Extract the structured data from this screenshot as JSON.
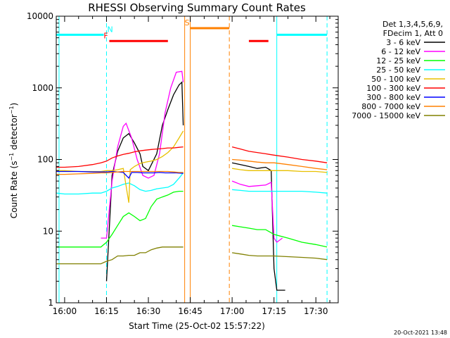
{
  "chart_data": {
    "type": "line",
    "title": "RHESSI Observing Summary Count Rates",
    "xlabel": "Start Time (25-Oct-02 15:57:22)",
    "ylabel": "Count Rate (s⁻¹ detector⁻¹)",
    "ylabel_main": "Count Rate (s",
    "ylabel_sup1": "−1",
    "ylabel_mid": " detector",
    "ylabel_sup2": "−1",
    "ylabel_end": ")",
    "yscale": "log",
    "ylim": [
      1,
      10000
    ],
    "xlim_minutes": [
      -3,
      98
    ],
    "x_ticks": [
      {
        "min": 0,
        "label": "16:00"
      },
      {
        "min": 15,
        "label": "16:15"
      },
      {
        "min": 30,
        "label": "16:30"
      },
      {
        "min": 45,
        "label": "16:45"
      },
      {
        "min": 60,
        "label": "17:00"
      },
      {
        "min": 75,
        "label": "17:15"
      },
      {
        "min": 90,
        "label": "17:30"
      }
    ],
    "y_ticks": [
      {
        "v": 1,
        "label": "1"
      },
      {
        "v": 10,
        "label": "10"
      },
      {
        "v": 100,
        "label": "100"
      },
      {
        "v": 1000,
        "label": "1000"
      },
      {
        "v": 10000,
        "label": "10000"
      }
    ],
    "legend_header": [
      "Det 1,3,4,5,6,9,",
      "FDecim 1, Att 0"
    ],
    "legend_position": "right",
    "footer_timestamp": "20-Oct-2021 13:48",
    "series": [
      {
        "name": "3 - 6 keV",
        "color": "#000000",
        "points": [
          [
            15,
            2
          ],
          [
            17,
            60
          ],
          [
            19,
            130
          ],
          [
            21,
            200
          ],
          [
            23,
            230
          ],
          [
            25,
            170
          ],
          [
            27,
            120
          ],
          [
            28,
            80
          ],
          [
            30,
            70
          ],
          [
            33,
            120
          ],
          [
            35,
            300
          ],
          [
            37,
            500
          ],
          [
            39,
            800
          ],
          [
            41,
            1100
          ],
          [
            42,
            1200
          ],
          [
            42.5,
            300
          ],
          [
            58,
            null
          ],
          [
            60,
            90
          ],
          [
            63,
            85
          ],
          [
            66,
            80
          ],
          [
            69,
            75
          ],
          [
            72,
            78
          ],
          [
            74,
            70
          ],
          [
            75,
            3
          ],
          [
            76,
            1.5
          ],
          [
            78,
            1.5
          ],
          [
            79,
            1.5
          ]
        ]
      },
      {
        "name": "6 - 12 keV",
        "color": "#ff00ff",
        "points": [
          [
            13,
            8
          ],
          [
            15,
            8
          ],
          [
            17,
            50
          ],
          [
            19,
            150
          ],
          [
            21,
            290
          ],
          [
            22,
            320
          ],
          [
            24,
            200
          ],
          [
            26,
            100
          ],
          [
            28,
            60
          ],
          [
            30,
            55
          ],
          [
            32,
            60
          ],
          [
            34,
            120
          ],
          [
            36,
            450
          ],
          [
            38,
            1000
          ],
          [
            40,
            1650
          ],
          [
            42,
            1700
          ],
          [
            42.5,
            1200
          ],
          [
            58,
            null
          ],
          [
            60,
            50
          ],
          [
            63,
            45
          ],
          [
            66,
            42
          ],
          [
            69,
            43
          ],
          [
            72,
            44
          ],
          [
            74,
            48
          ],
          [
            75,
            8
          ],
          [
            76,
            7
          ],
          [
            78,
            8
          ]
        ]
      },
      {
        "name": "12 - 25 keV",
        "color": "#00ff00",
        "points": [
          [
            -3,
            6
          ],
          [
            0,
            6
          ],
          [
            5,
            6
          ],
          [
            10,
            6
          ],
          [
            13,
            6
          ],
          [
            15,
            7
          ],
          [
            17,
            9
          ],
          [
            19,
            12
          ],
          [
            21,
            16
          ],
          [
            23,
            18
          ],
          [
            25,
            16
          ],
          [
            27,
            14
          ],
          [
            29,
            15
          ],
          [
            31,
            22
          ],
          [
            33,
            28
          ],
          [
            35,
            30
          ],
          [
            37,
            32
          ],
          [
            39,
            35
          ],
          [
            41,
            36
          ],
          [
            42.5,
            36
          ],
          [
            58,
            null
          ],
          [
            60,
            12
          ],
          [
            63,
            11.5
          ],
          [
            66,
            11
          ],
          [
            69,
            10.5
          ],
          [
            72,
            10.5
          ],
          [
            75,
            9
          ],
          [
            80,
            8
          ],
          [
            85,
            7
          ],
          [
            90,
            6.5
          ],
          [
            94,
            6
          ]
        ]
      },
      {
        "name": "25 - 50 keV",
        "color": "#00ffff",
        "points": [
          [
            -3,
            34
          ],
          [
            0,
            33
          ],
          [
            5,
            33
          ],
          [
            10,
            34
          ],
          [
            13,
            34
          ],
          [
            15,
            36
          ],
          [
            17,
            40
          ],
          [
            19,
            42
          ],
          [
            21,
            45
          ],
          [
            23,
            47
          ],
          [
            25,
            43
          ],
          [
            27,
            38
          ],
          [
            29,
            36
          ],
          [
            31,
            37
          ],
          [
            33,
            39
          ],
          [
            35,
            40
          ],
          [
            37,
            41
          ],
          [
            39,
            45
          ],
          [
            41,
            55
          ],
          [
            42.5,
            65
          ],
          [
            58,
            null
          ],
          [
            60,
            38
          ],
          [
            63,
            37
          ],
          [
            66,
            36
          ],
          [
            69,
            36
          ],
          [
            72,
            36
          ],
          [
            75,
            36
          ],
          [
            80,
            36
          ],
          [
            85,
            36
          ],
          [
            90,
            35
          ],
          [
            94,
            34
          ]
        ]
      },
      {
        "name": "50 - 100 keV",
        "color": "#e8c000",
        "points": [
          [
            -3,
            70
          ],
          [
            0,
            70
          ],
          [
            5,
            68
          ],
          [
            10,
            68
          ],
          [
            13,
            68
          ],
          [
            15,
            70
          ],
          [
            17,
            70
          ],
          [
            19,
            72
          ],
          [
            21,
            75
          ],
          [
            23,
            25
          ],
          [
            23.5,
            72
          ],
          [
            25,
            80
          ],
          [
            27,
            88
          ],
          [
            29,
            92
          ],
          [
            31,
            95
          ],
          [
            33,
            100
          ],
          [
            35,
            110
          ],
          [
            37,
            125
          ],
          [
            39,
            150
          ],
          [
            41,
            200
          ],
          [
            42.5,
            250
          ],
          [
            58,
            null
          ],
          [
            60,
            75
          ],
          [
            63,
            72
          ],
          [
            66,
            70
          ],
          [
            69,
            70
          ],
          [
            72,
            70
          ],
          [
            75,
            70
          ],
          [
            80,
            70
          ],
          [
            85,
            68
          ],
          [
            90,
            68
          ],
          [
            94,
            66
          ]
        ]
      },
      {
        "name": "100 - 300 keV",
        "color": "#ff0000",
        "points": [
          [
            -3,
            78
          ],
          [
            0,
            78
          ],
          [
            5,
            80
          ],
          [
            10,
            85
          ],
          [
            13,
            90
          ],
          [
            15,
            95
          ],
          [
            17,
            105
          ],
          [
            19,
            112
          ],
          [
            21,
            118
          ],
          [
            23,
            122
          ],
          [
            25,
            128
          ],
          [
            27,
            132
          ],
          [
            29,
            135
          ],
          [
            31,
            138
          ],
          [
            33,
            140
          ],
          [
            35,
            142
          ],
          [
            37,
            145
          ],
          [
            39,
            145
          ],
          [
            41,
            148
          ],
          [
            42.5,
            150
          ],
          [
            58,
            null
          ],
          [
            60,
            150
          ],
          [
            63,
            140
          ],
          [
            66,
            130
          ],
          [
            69,
            125
          ],
          [
            72,
            120
          ],
          [
            75,
            115
          ],
          [
            80,
            108
          ],
          [
            85,
            100
          ],
          [
            90,
            95
          ],
          [
            94,
            90
          ]
        ]
      },
      {
        "name": "300 - 800 keV",
        "color": "#0000ff",
        "points": [
          [
            -3,
            68
          ],
          [
            0,
            68
          ],
          [
            5,
            68
          ],
          [
            10,
            67
          ],
          [
            13,
            67
          ],
          [
            15,
            67
          ],
          [
            17,
            68
          ],
          [
            19,
            67
          ],
          [
            21,
            66
          ],
          [
            23,
            55
          ],
          [
            24,
            66
          ],
          [
            26,
            66
          ],
          [
            28,
            65
          ],
          [
            30,
            65
          ],
          [
            32,
            65
          ],
          [
            34,
            66
          ],
          [
            36,
            65
          ],
          [
            38,
            65
          ],
          [
            40,
            65
          ],
          [
            42.5,
            64
          ]
        ]
      },
      {
        "name": "800 - 7000 keV",
        "color": "#ff8000",
        "points": [
          [
            -3,
            62
          ],
          [
            0,
            62
          ],
          [
            5,
            63
          ],
          [
            10,
            64
          ],
          [
            13,
            65
          ],
          [
            15,
            65
          ],
          [
            17,
            66
          ],
          [
            19,
            67
          ],
          [
            21,
            68
          ],
          [
            23,
            68
          ],
          [
            25,
            68
          ],
          [
            27,
            68
          ],
          [
            29,
            68
          ],
          [
            31,
            68
          ],
          [
            33,
            68
          ],
          [
            35,
            68
          ],
          [
            37,
            68
          ],
          [
            39,
            67
          ],
          [
            41,
            66
          ],
          [
            42.5,
            66
          ],
          [
            58,
            null
          ],
          [
            60,
            100
          ],
          [
            63,
            98
          ],
          [
            66,
            95
          ],
          [
            69,
            92
          ],
          [
            72,
            90
          ],
          [
            75,
            90
          ],
          [
            80,
            85
          ],
          [
            85,
            80
          ],
          [
            90,
            75
          ],
          [
            94,
            72
          ]
        ]
      },
      {
        "name": "7000 - 15000 keV",
        "color": "#808000",
        "points": [
          [
            -3,
            3.5
          ],
          [
            0,
            3.5
          ],
          [
            5,
            3.5
          ],
          [
            10,
            3.5
          ],
          [
            13,
            3.5
          ],
          [
            15,
            3.8
          ],
          [
            17,
            4
          ],
          [
            19,
            4.5
          ],
          [
            21,
            4.5
          ],
          [
            23,
            4.6
          ],
          [
            25,
            4.6
          ],
          [
            27,
            5
          ],
          [
            29,
            5
          ],
          [
            31,
            5.5
          ],
          [
            33,
            5.8
          ],
          [
            35,
            6
          ],
          [
            37,
            6
          ],
          [
            39,
            6
          ],
          [
            41,
            6
          ],
          [
            42.5,
            6
          ],
          [
            58,
            null
          ],
          [
            60,
            5
          ],
          [
            63,
            4.8
          ],
          [
            66,
            4.6
          ],
          [
            69,
            4.5
          ],
          [
            72,
            4.5
          ],
          [
            75,
            4.5
          ],
          [
            80,
            4.4
          ],
          [
            85,
            4.3
          ],
          [
            90,
            4.2
          ],
          [
            94,
            4
          ]
        ]
      }
    ],
    "flag_bars": [
      {
        "label": "N",
        "color": "#00ffff",
        "start": -3,
        "end": 14,
        "level": 5500
      },
      {
        "label": "",
        "color": "#00ffff",
        "start": 76,
        "end": 94,
        "level": 5500
      },
      {
        "label": "F",
        "color": "#ff0000",
        "start": 16,
        "end": 37,
        "level": 4500
      },
      {
        "label": "",
        "color": "#ff0000",
        "start": 66,
        "end": 73,
        "level": 4500
      },
      {
        "label": "S",
        "color": "#ff8000",
        "start": 45,
        "end": 59,
        "level": 6800
      }
    ],
    "vertical_lines": [
      {
        "x": -2,
        "color": "#00ffff",
        "style": "solid"
      },
      {
        "x": 15,
        "color": "#00ffff",
        "style": "dashed"
      },
      {
        "x": 76,
        "color": "#00ffff",
        "style": "solid"
      },
      {
        "x": 94,
        "color": "#00ffff",
        "style": "dashed"
      },
      {
        "x": 43,
        "color": "#ff8000",
        "style": "solid"
      },
      {
        "x": 45,
        "color": "#ff8000",
        "style": "solid"
      },
      {
        "x": 59,
        "color": "#ff8000",
        "style": "dashed"
      }
    ]
  }
}
